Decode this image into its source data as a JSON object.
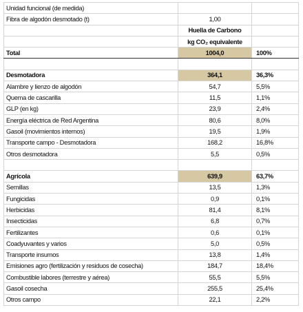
{
  "info": [
    {
      "label": "Unidad funcional (de medida)"
    },
    {
      "label": "Fibra de algodón desmotado (t)",
      "value": "1,00"
    }
  ],
  "header": [
    "Huella de Carbono",
    "kg CO₂ equivalente"
  ],
  "total": {
    "label": "Total",
    "value": "1004,0",
    "share": "100%"
  },
  "sections": [
    {
      "label": "Desmotadora",
      "value": "364,1",
      "share": "36,3%",
      "items": [
        {
          "label": "Alambre y lienzo de algodón",
          "value": "54,7",
          "share": "5,5%"
        },
        {
          "label": "Quema de cascarilla",
          "value": "11,5",
          "share": "1,1%"
        },
        {
          "label": "GLP (en kg)",
          "value": "23,9",
          "share": "2,4%"
        },
        {
          "label": "Energía eléctrica de Red Argentina",
          "value": "80,6",
          "share": "8,0%"
        },
        {
          "label": "Gasoil (movimientos internos)",
          "value": "19,5",
          "share": "1,9%"
        },
        {
          "label": "Transporte campo - Desmotadora",
          "value": "168,2",
          "share": "16,8%"
        },
        {
          "label": "Otros desmotadora",
          "value": "5,5",
          "share": "0,5%"
        }
      ]
    },
    {
      "label": "Agrícola",
      "value": "639,9",
      "share": "63,7%",
      "items": [
        {
          "label": "Semillas",
          "value": "13,5",
          "share": "1,3%"
        },
        {
          "label": "Fungicidas",
          "value": "0,9",
          "share": "0,1%"
        },
        {
          "label": "Herbicidas",
          "value": "81,4",
          "share": "8,1%"
        },
        {
          "label": "Insecticidas",
          "value": "6,8",
          "share": "0,7%"
        },
        {
          "label": "Fertilizantes",
          "value": "0,6",
          "share": "0,1%"
        },
        {
          "label": "Coadyuvantes y varios",
          "value": "5,0",
          "share": "0,5%"
        },
        {
          "label": "Transporte insumos",
          "value": "13,8",
          "share": "1,4%"
        },
        {
          "label": "Emisiones agro (fertilización y residuos de cosecha)",
          "value": "184,7",
          "share": "18,4%"
        },
        {
          "label": "Combustible labores (terrestre y aérea)",
          "value": "55,5",
          "share": "5,5%"
        },
        {
          "label": "Gasoil cosecha",
          "value": "255,5",
          "share": "25,4%"
        },
        {
          "label": "Otros campo",
          "value": "22,1",
          "share": "2,2%"
        }
      ]
    }
  ]
}
